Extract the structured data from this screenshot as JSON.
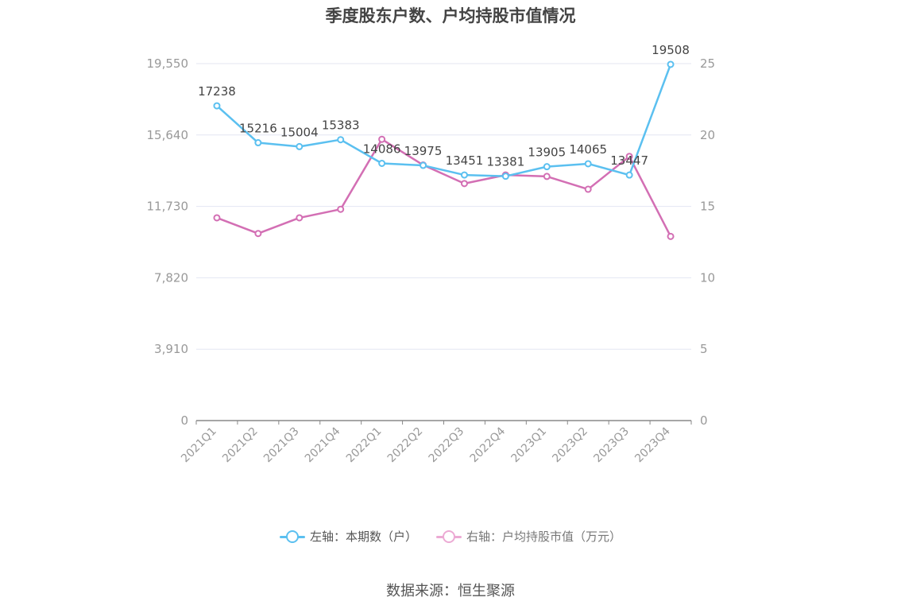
{
  "title": "季度股东户数、户均持股市值情况",
  "source": "数据来源：恒生聚源",
  "legend": [
    {
      "label": "左轴：本期数（户）",
      "color": "#5bc0f0"
    },
    {
      "label": "右轴：户均持股市值（万元）",
      "color": "#d36fb4"
    }
  ],
  "chart_data": {
    "type": "line",
    "categories": [
      "2021Q1",
      "2021Q2",
      "2021Q3",
      "2021Q4",
      "2022Q1",
      "2022Q2",
      "2022Q3",
      "2022Q4",
      "2023Q1",
      "2023Q2",
      "2023Q3",
      "2023Q4"
    ],
    "left_axis": {
      "ticks": [
        0,
        3910,
        7820,
        11730,
        15640,
        19550
      ],
      "tick_labels": [
        "0",
        "3,910",
        "7,820",
        "11,730",
        "15,640",
        "19,550"
      ],
      "ylim": [
        0,
        19550
      ]
    },
    "right_axis": {
      "ticks": [
        0,
        5,
        10,
        15,
        20,
        25
      ],
      "tick_labels": [
        "0",
        "5",
        "10",
        "15",
        "20",
        "25"
      ],
      "ylim": [
        0,
        25
      ]
    },
    "grid": true,
    "series": [
      {
        "name": "左轴：本期数（户）",
        "axis": "left",
        "color": "#5bc0f0",
        "values": [
          17238,
          15216,
          15004,
          15383,
          14086,
          13975,
          13451,
          13381,
          13905,
          14065,
          13447,
          19508
        ],
        "labels": [
          "17238",
          "15216",
          "15004",
          "15383",
          "14086",
          "13975",
          "13451",
          "13381",
          "13905",
          "14065",
          "13447",
          "19508"
        ]
      },
      {
        "name": "右轴：户均持股市值（万元）",
        "axis": "right",
        "color": "#d36fb4",
        "values": [
          14.2,
          13.1,
          14.2,
          14.8,
          19.7,
          17.9,
          16.6,
          17.2,
          17.1,
          16.2,
          18.5,
          12.9
        ]
      }
    ]
  }
}
